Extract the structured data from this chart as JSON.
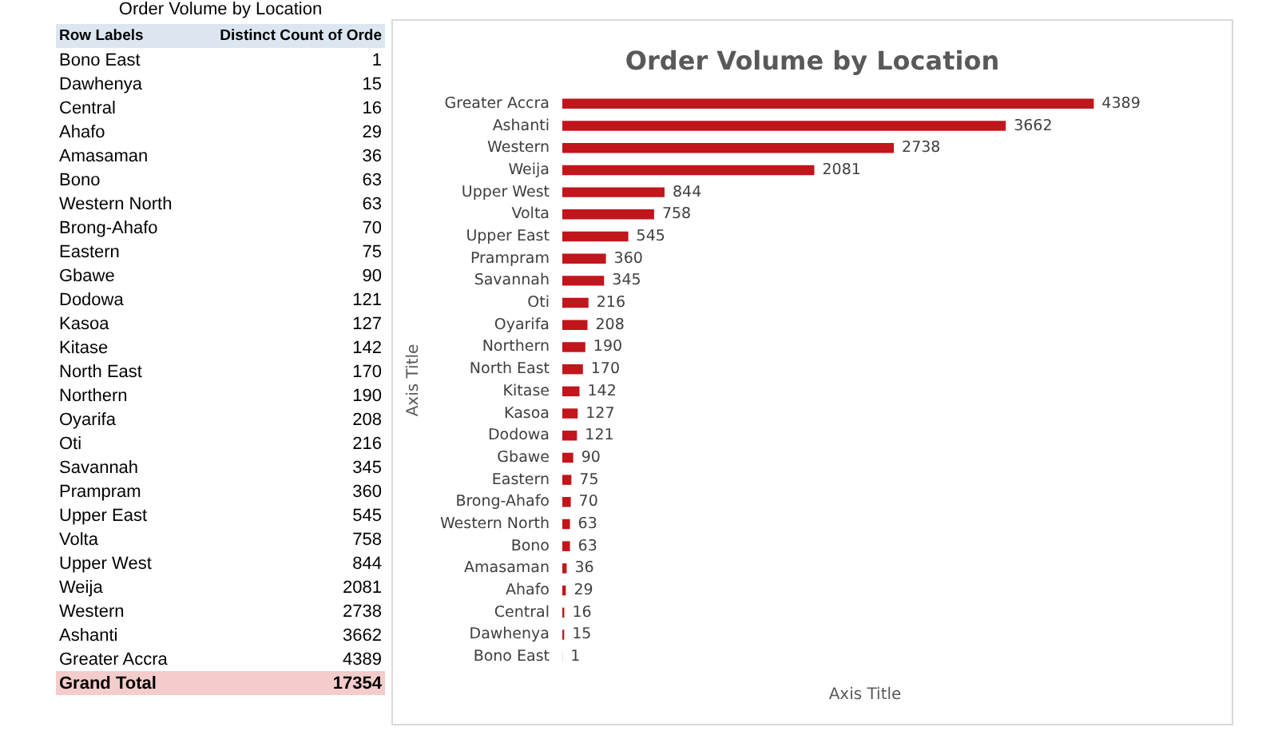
{
  "chart_data": [
    {
      "type": "other",
      "title": "Order Volume by Location",
      "categories": [
        "Bono East",
        "Dawhenya",
        "Central",
        "Ahafo",
        "Amasaman",
        "Bono",
        "Western North",
        "Brong-Ahafo",
        "Eastern",
        "Gbawe",
        "Dodowa",
        "Kasoa",
        "Kitase",
        "North East",
        "Northern",
        "Oyarifa",
        "Oti",
        "Savannah",
        "Prampram",
        "Upper East",
        "Volta",
        "Upper West",
        "Weija",
        "Western",
        "Ashanti",
        "Greater Accra"
      ],
      "values": [
        1,
        15,
        16,
        29,
        36,
        63,
        63,
        70,
        75,
        90,
        121,
        127,
        142,
        170,
        190,
        208,
        216,
        345,
        360,
        545,
        758,
        844,
        2081,
        2738,
        3662,
        4389
      ],
      "data_labels": true,
      "annotations": [
        "Row Labels",
        "Distinct Count of Orde",
        "Grand Total",
        "17354"
      ]
    },
    {
      "type": "bar",
      "title": "Order Volume by Location",
      "orientation": "horizontal",
      "categories": [
        "Greater Accra",
        "Ashanti",
        "Western",
        "Weija",
        "Upper West",
        "Volta",
        "Upper East",
        "Prampram",
        "Savannah",
        "Oti",
        "Oyarifa",
        "Northern",
        "North East",
        "Kitase",
        "Kasoa",
        "Dodowa",
        "Gbawe",
        "Eastern",
        "Brong-Ahafo",
        "Western North",
        "Bono",
        "Amasaman",
        "Ahafo",
        "Central",
        "Dawhenya",
        "Bono East"
      ],
      "values": [
        4389,
        3662,
        2738,
        2081,
        844,
        758,
        545,
        360,
        345,
        216,
        208,
        190,
        170,
        142,
        127,
        121,
        90,
        75,
        70,
        63,
        63,
        36,
        29,
        16,
        15,
        1
      ],
      "color": "#c0161c",
      "data_labels": true,
      "grid": false,
      "xlabel": "Axis Title",
      "ylabel": "Axis Title"
    }
  ]
}
